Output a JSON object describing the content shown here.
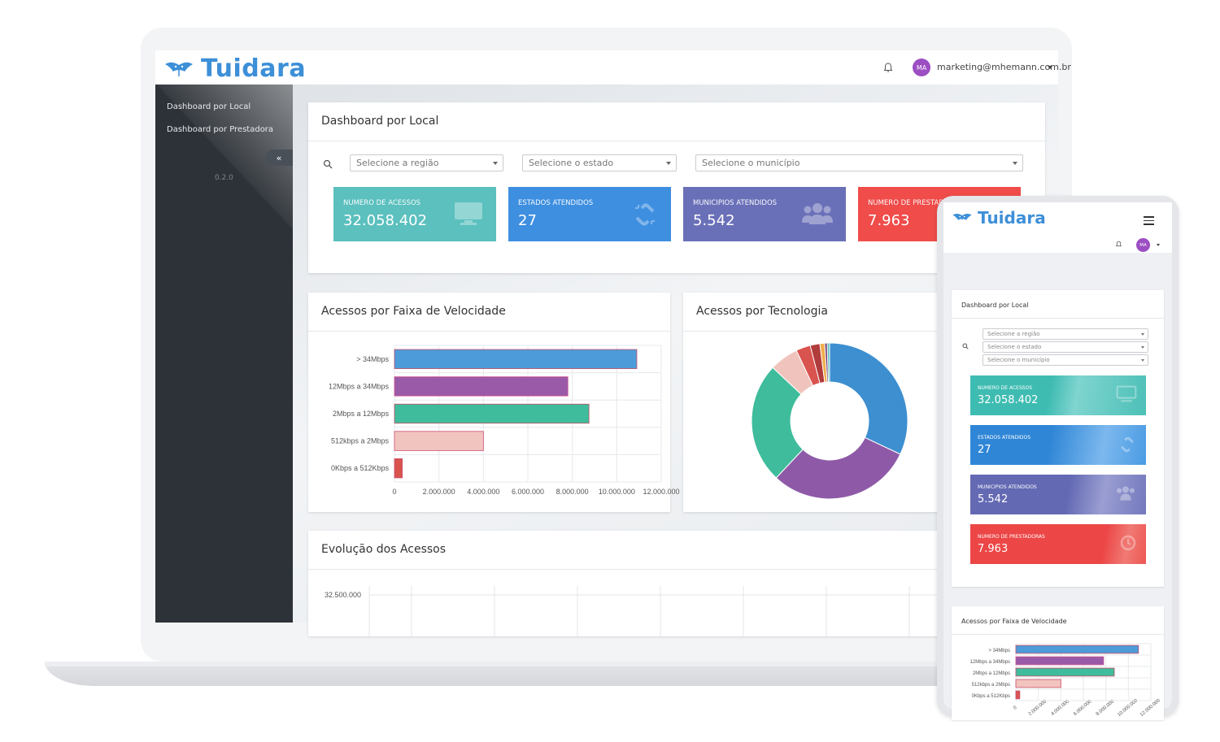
{
  "brand": {
    "name": "Tuidara",
    "color": "#3d8fd8"
  },
  "topbar": {
    "user_email": "marketing@mhemann.com.br",
    "avatar_initials": "MA",
    "avatar_color": "#9c4ec3"
  },
  "sidebar": {
    "items": [
      {
        "label": "Dashboard por Local"
      },
      {
        "label": "Dashboard por Prestadora"
      }
    ],
    "collapse_label": "«",
    "version": "0.2.0"
  },
  "filters": {
    "title": "Dashboard por Local",
    "region_placeholder": "Selecione a região",
    "state_placeholder": "Selecione o estado",
    "city_placeholder": "Selecione o município"
  },
  "stats": [
    {
      "label": "NUMERO DE ACESSOS",
      "value": "32.058.402",
      "color": "#5bc0be",
      "icon": "monitor-icon"
    },
    {
      "label": "ESTADOS ATENDIDOS",
      "value": "27",
      "color": "#3e8fe0",
      "icon": "link-icon"
    },
    {
      "label": "MUNICIPIOS ATENDIDOS",
      "value": "5.542",
      "color": "#6a70b8",
      "icon": "users-icon"
    },
    {
      "label": "NUMERO DE PRESTADORAS",
      "value": "7.963",
      "color": "#ef4c4a",
      "icon": "clock-icon"
    }
  ],
  "speed_panel": {
    "title": "Acessos por Faixa de Velocidade"
  },
  "tech_panel": {
    "title": "Acessos por Tecnologia"
  },
  "evolution_panel": {
    "title": "Evolução dos Acessos",
    "first_tick": "32.500.000"
  },
  "chart_data": [
    {
      "type": "bar",
      "orientation": "horizontal",
      "title": "Acessos por Faixa de Velocidade",
      "categories": [
        "> 34Mbps",
        "12Mbps a 34Mbps",
        "2Mbps a 12Mbps",
        "512kbps a 2Mbps",
        "0Kbps a 512Kbps"
      ],
      "values": [
        10900000,
        7800000,
        8750000,
        4000000,
        350000
      ],
      "colors": [
        "#4d9bd8",
        "#9a5aa8",
        "#3fbc9b",
        "#f2c4bf",
        "#d9534f"
      ],
      "xlim": [
        0,
        12000000
      ],
      "xticks": [
        "0",
        "2.000.000",
        "4.000.000",
        "6.000.000",
        "8.000.000",
        "10.000.000",
        "12.000.000"
      ],
      "grid": true
    },
    {
      "type": "pie",
      "donut": true,
      "title": "Acessos por Tecnologia",
      "values": [
        32,
        30,
        25,
        6,
        3,
        2,
        1,
        0.5,
        0.5
      ],
      "colors": [
        "#3d8fd0",
        "#8e5aa8",
        "#3fbc9b",
        "#f0c4bc",
        "#d9534f",
        "#b23b3b",
        "#f0ad4e",
        "#6a2c70",
        "#5bc0be"
      ]
    }
  ],
  "phone": {
    "filters_title": "Dashboard por Local",
    "speed_title": "Acessos por Faixa de Velocidade",
    "x_ticks": [
      "0",
      "2.000.000",
      "4.000.000",
      "6.000.000",
      "8.000.000",
      "10.000.000",
      "12.000.000"
    ]
  }
}
